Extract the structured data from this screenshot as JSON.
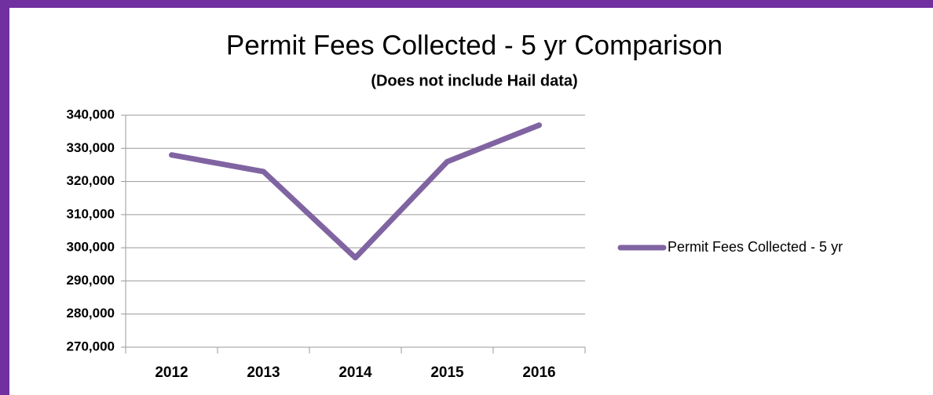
{
  "chart_data": {
    "type": "line",
    "title": "Permit Fees Collected - 5 yr Comparison",
    "subtitle": "(Does not include Hail data)",
    "categories": [
      "2012",
      "2013",
      "2014",
      "2015",
      "2016"
    ],
    "series": [
      {
        "name": "Permit Fees Collected - 5 yr",
        "color": "#8064a2",
        "values": [
          328000,
          323000,
          297000,
          326000,
          337000
        ]
      }
    ],
    "ylim": [
      270000,
      340000
    ],
    "yticks": [
      {
        "value": 270000,
        "label": "270,000"
      },
      {
        "value": 280000,
        "label": "280,000"
      },
      {
        "value": 290000,
        "label": "290,000"
      },
      {
        "value": 300000,
        "label": "300,000"
      },
      {
        "value": 310000,
        "label": "310,000"
      },
      {
        "value": 320000,
        "label": "320,000"
      },
      {
        "value": 330000,
        "label": "330,000"
      },
      {
        "value": 340000,
        "label": "340,000"
      }
    ],
    "grid": true,
    "legend": "right"
  }
}
